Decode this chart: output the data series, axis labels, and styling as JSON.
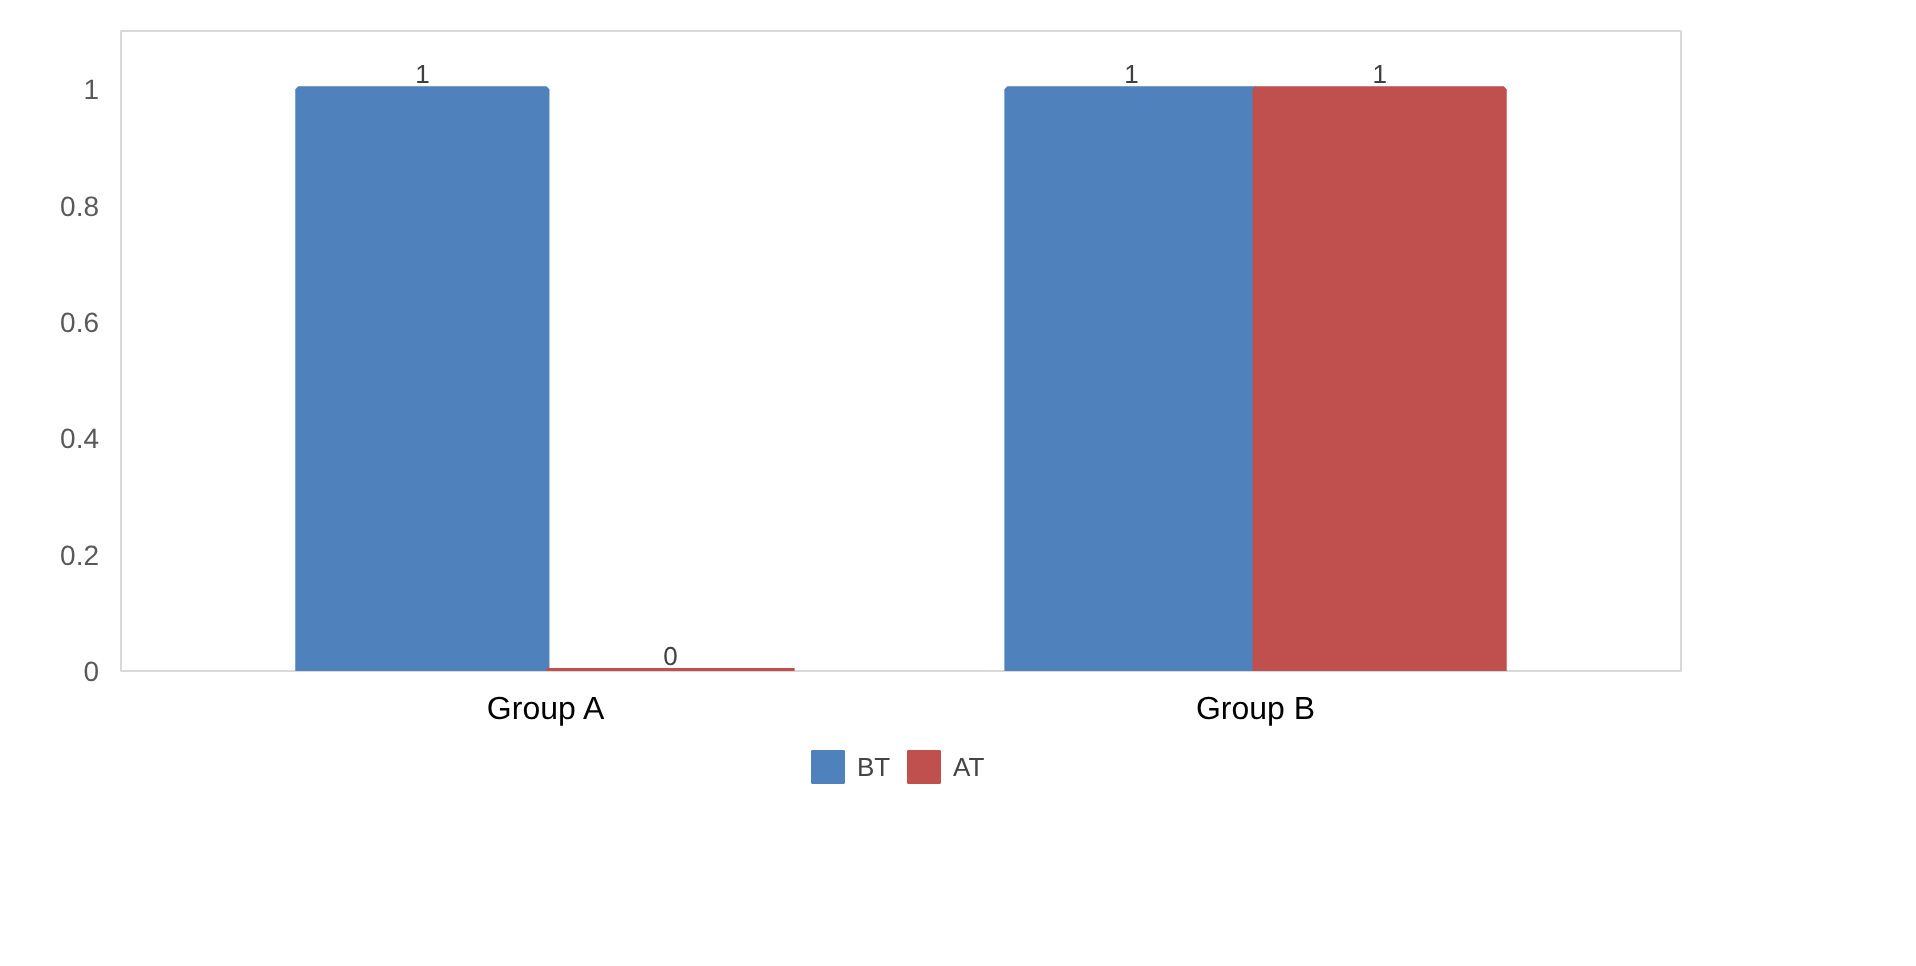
{
  "chart_data": {
    "type": "bar",
    "categories": [
      "Group A",
      "Group B"
    ],
    "series": [
      {
        "name": "BT",
        "color": "#4f81bd",
        "values": [
          1,
          1
        ]
      },
      {
        "name": "AT",
        "color": "#c0504d",
        "values": [
          0,
          1
        ]
      }
    ],
    "ylim": [
      0,
      1.1
    ],
    "yticks": [
      0,
      0.2,
      0.4,
      0.6,
      0.8,
      1
    ],
    "grid": false,
    "legend": "bottom",
    "data_labels": true
  }
}
